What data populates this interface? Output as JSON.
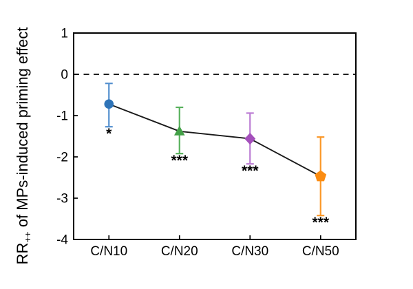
{
  "figure": {
    "background_color": "#ffffff",
    "axis_color": "#000000",
    "description": "Point-and-error-bar plot of microplastics-induced priming effect across C/N ratios"
  },
  "chart_data": {
    "type": "line",
    "title": "",
    "xlabel": "",
    "ylabel_prefix": "RR",
    "ylabel_subscript": "++",
    "ylabel_suffix": " of MPs-induced priming effect",
    "categories": [
      "C/N10",
      "C/N20",
      "C/N30",
      "C/N50"
    ],
    "yticks": [
      1,
      0,
      -1,
      -2,
      -3,
      -4
    ],
    "ylim": [
      -4,
      1
    ],
    "grid": false,
    "legend": "none",
    "zero_line": {
      "y": 0,
      "style": "dashed",
      "color": "#000000"
    },
    "connector_line_color": "#1a1a1a",
    "significance_color": "#111111",
    "series": [
      {
        "name": "MPs-induced priming effect",
        "points": [
          {
            "category": "C/N10",
            "marker": "circle",
            "mean": -0.72,
            "ci_upper": -0.22,
            "ci_lower": -1.27,
            "significance": "*",
            "marker_color": "#2f74b8",
            "errorbar_color": "#5490cf"
          },
          {
            "category": "C/N20",
            "marker": "triangle",
            "mean": -1.38,
            "ci_upper": -0.8,
            "ci_lower": -1.92,
            "significance": "***",
            "marker_color": "#43a047",
            "errorbar_color": "#58b15c"
          },
          {
            "category": "C/N30",
            "marker": "diamond",
            "mean": -1.56,
            "ci_upper": -0.94,
            "ci_lower": -2.17,
            "significance": "***",
            "marker_color": "#a44fbb",
            "errorbar_color": "#bc7ed4"
          },
          {
            "category": "C/N50",
            "marker": "pentagon",
            "mean": -2.47,
            "ci_upper": -1.52,
            "ci_lower": -3.42,
            "significance": "***",
            "marker_color": "#fb8c12",
            "errorbar_color": "#fb9726"
          }
        ]
      }
    ]
  }
}
